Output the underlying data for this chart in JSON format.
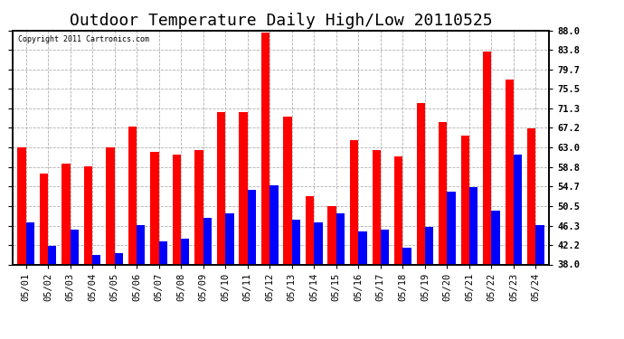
{
  "title": "Outdoor Temperature Daily High/Low 20110525",
  "copyright": "Copyright 2011 Cartronics.com",
  "categories": [
    "05/01",
    "05/02",
    "05/03",
    "05/04",
    "05/05",
    "05/06",
    "05/07",
    "05/08",
    "05/09",
    "05/10",
    "05/11",
    "05/12",
    "05/13",
    "05/14",
    "05/15",
    "05/16",
    "05/17",
    "05/18",
    "05/19",
    "05/20",
    "05/21",
    "05/22",
    "05/23",
    "05/24"
  ],
  "highs": [
    63.0,
    57.5,
    59.5,
    59.0,
    63.0,
    67.5,
    62.0,
    61.5,
    62.5,
    70.5,
    70.5,
    87.5,
    69.5,
    52.5,
    50.5,
    64.5,
    62.5,
    61.0,
    72.5,
    68.5,
    65.5,
    83.5,
    77.5,
    67.0
  ],
  "lows": [
    47.0,
    42.0,
    45.5,
    40.0,
    40.5,
    46.5,
    43.0,
    43.5,
    48.0,
    49.0,
    54.0,
    55.0,
    47.5,
    47.0,
    49.0,
    45.0,
    45.5,
    41.5,
    46.0,
    53.5,
    54.5,
    49.5,
    61.5,
    46.5
  ],
  "high_color": "#ff0000",
  "low_color": "#0000ff",
  "background_color": "#ffffff",
  "plot_bg_color": "#ffffff",
  "grid_color": "#b0b0b0",
  "ylim": [
    38.0,
    88.0
  ],
  "ybase": 38.0,
  "yticks": [
    38.0,
    42.2,
    46.3,
    50.5,
    54.7,
    58.8,
    63.0,
    67.2,
    71.3,
    75.5,
    79.7,
    83.8,
    88.0
  ],
  "title_fontsize": 13,
  "tick_fontsize": 7.5,
  "bar_width": 0.38
}
